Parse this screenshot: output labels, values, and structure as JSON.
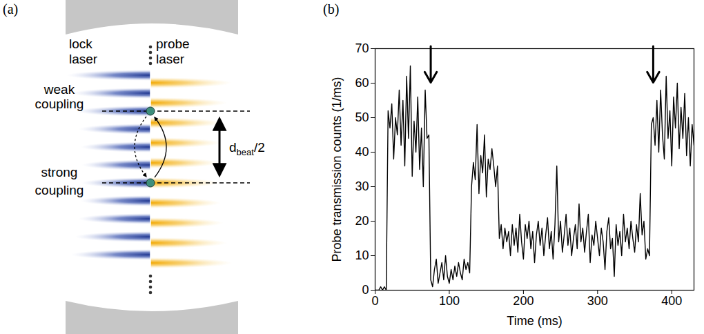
{
  "diagram": {
    "panel_label": "(a)",
    "lock_laser": "lock laser",
    "probe_laser": "probe laser",
    "weak_coupling": "weak coupling",
    "strong_coupling": "strong coupling",
    "distance_label": {
      "symbol": "d",
      "subscript": "beat",
      "suffix": "/2"
    }
  },
  "chart_data": {
    "type": "line",
    "panel_label": "(b)",
    "xlabel": "Time (ms)",
    "ylabel": "Probe transmission counts (1/ms)",
    "xlim": [
      0,
      430
    ],
    "ylim": [
      0,
      70
    ],
    "xticks": [
      0,
      100,
      200,
      300,
      400
    ],
    "yticks": [
      0,
      10,
      20,
      30,
      40,
      50,
      60,
      70
    ],
    "color": "#000000",
    "arrow_x": [
      75,
      375
    ],
    "x": [
      0,
      2.5,
      5,
      7.5,
      10,
      12.5,
      15,
      17.5,
      20,
      22.5,
      25,
      27.5,
      30,
      32.5,
      35,
      37.5,
      40,
      42.5,
      45,
      47.5,
      50,
      52.5,
      55,
      57.5,
      60,
      62.5,
      65,
      67.5,
      70,
      72.5,
      75,
      77.5,
      80,
      82.5,
      85,
      87.5,
      90,
      92.5,
      95,
      97.5,
      100,
      102.5,
      105,
      107.5,
      110,
      112.5,
      115,
      117.5,
      120,
      122.5,
      125,
      127.5,
      130,
      132.5,
      135,
      137.5,
      140,
      142.5,
      145,
      147.5,
      150,
      152.5,
      155,
      157.5,
      160,
      162.5,
      165,
      167.5,
      170,
      172.5,
      175,
      177.5,
      180,
      182.5,
      185,
      187.5,
      190,
      192.5,
      195,
      197.5,
      200,
      202.5,
      205,
      207.5,
      210,
      212.5,
      215,
      217.5,
      220,
      222.5,
      225,
      227.5,
      230,
      232.5,
      235,
      237.5,
      240,
      242.5,
      245,
      247.5,
      250,
      252.5,
      255,
      257.5,
      260,
      262.5,
      265,
      267.5,
      270,
      272.5,
      275,
      277.5,
      280,
      282.5,
      285,
      287.5,
      290,
      292.5,
      295,
      297.5,
      300,
      302.5,
      305,
      307.5,
      310,
      312.5,
      315,
      317.5,
      320,
      322.5,
      325,
      327.5,
      330,
      332.5,
      335,
      337.5,
      340,
      342.5,
      345,
      347.5,
      350,
      352.5,
      355,
      357.5,
      360,
      362.5,
      365,
      367.5,
      370,
      372.5,
      375,
      377.5,
      380,
      382.5,
      385,
      387.5,
      390,
      392.5,
      395,
      397.5,
      400,
      402.5,
      405,
      407.5,
      410,
      412.5,
      415,
      417.5,
      420,
      422.5,
      425,
      427.5,
      430
    ],
    "values": [
      0,
      0,
      0,
      1,
      0,
      1,
      0,
      52,
      47,
      54,
      38,
      50,
      45,
      58,
      42,
      55,
      36,
      62,
      44,
      65,
      33,
      49,
      40,
      56,
      35,
      47,
      30,
      58,
      44,
      45,
      3,
      1,
      6,
      9,
      2,
      5,
      8,
      3,
      10,
      4,
      2,
      6,
      3,
      7,
      4,
      8,
      5,
      3,
      9,
      6,
      8,
      5,
      30,
      37,
      32,
      48,
      28,
      39,
      34,
      45,
      27,
      38,
      35,
      41,
      36,
      30,
      36,
      15,
      19,
      12,
      18,
      14,
      17,
      10,
      19,
      13,
      18,
      11,
      22,
      14,
      9,
      19,
      15,
      20,
      12,
      17,
      8,
      16,
      20,
      13,
      18,
      10,
      16,
      21,
      12,
      17,
      9,
      19,
      36,
      14,
      20,
      11,
      16,
      22,
      13,
      18,
      10,
      15,
      19,
      12,
      25,
      14,
      18,
      11,
      17,
      22,
      8,
      16,
      13,
      20,
      15,
      10,
      18,
      14,
      6,
      17,
      21,
      12,
      15,
      4,
      19,
      13,
      17,
      10,
      22,
      14,
      18,
      12,
      20,
      15,
      11,
      19,
      14,
      28,
      16,
      20,
      9,
      12,
      10,
      48,
      50,
      42,
      55,
      40,
      58,
      45,
      38,
      62,
      44,
      52,
      36,
      56,
      47,
      60,
      41,
      53,
      44,
      57,
      39,
      50,
      36,
      48,
      42
    ]
  }
}
